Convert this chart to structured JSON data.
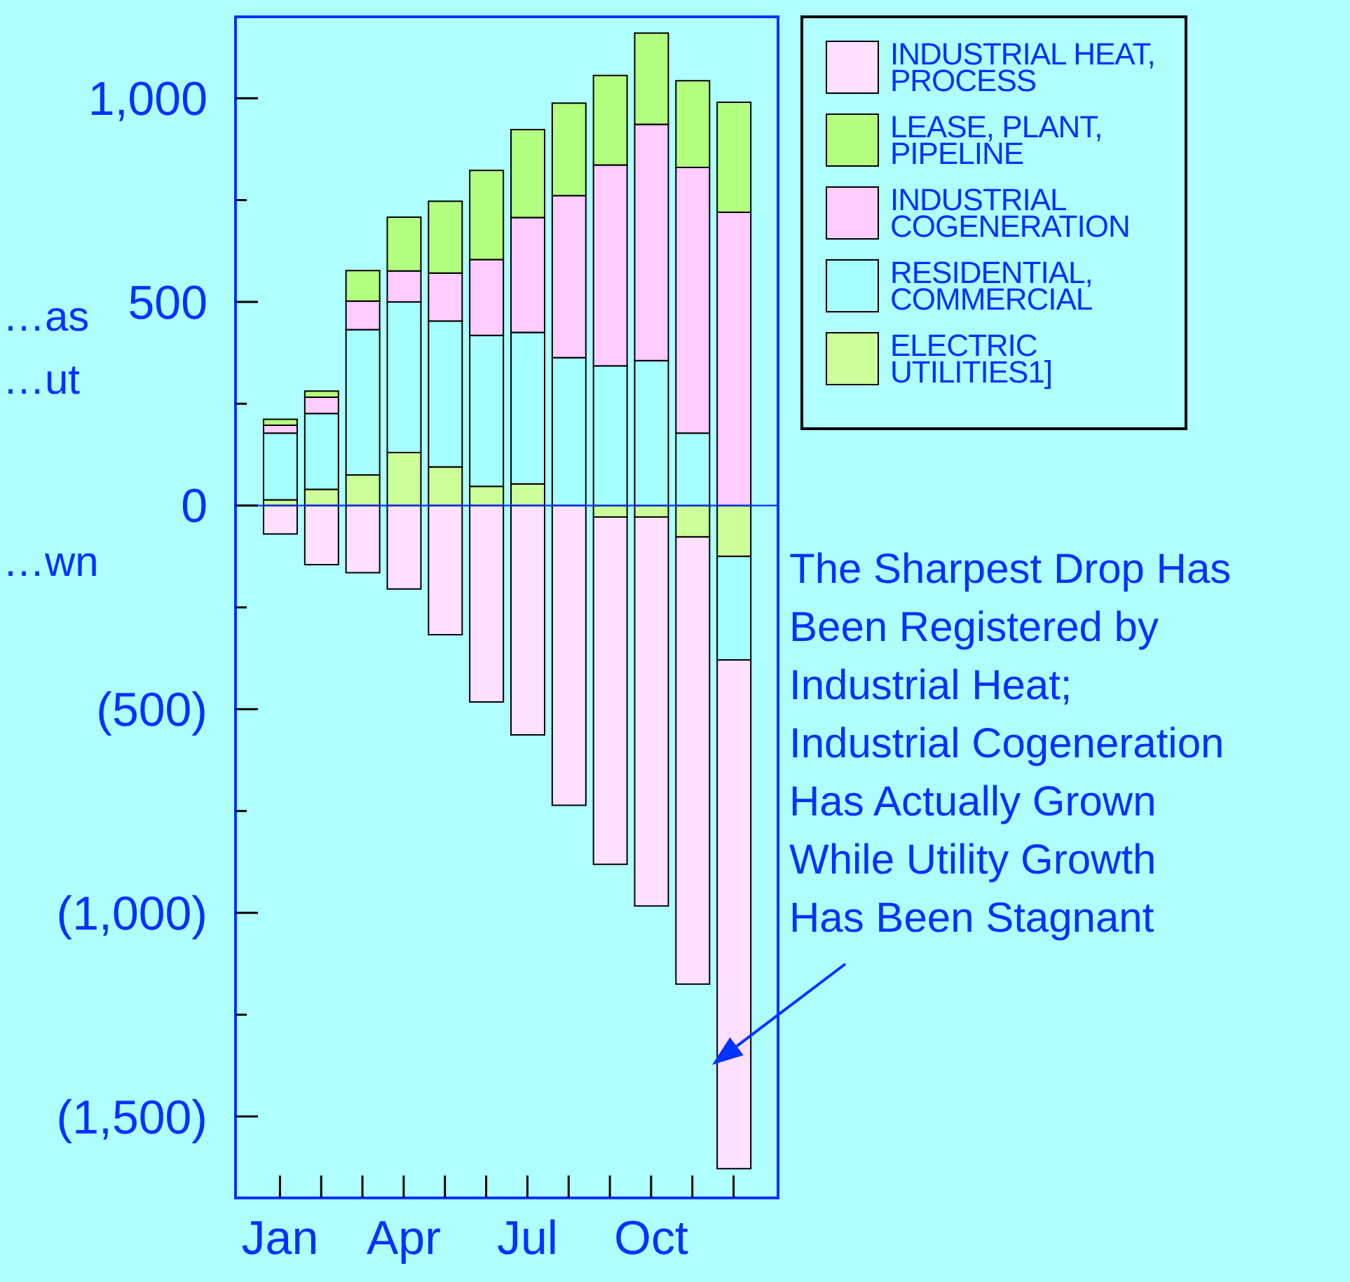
{
  "chart_data": {
    "type": "bar",
    "stacked": true,
    "legend": "top right",
    "categories": [
      "Jan",
      null,
      null,
      "Apr",
      null,
      null,
      "Jul",
      null,
      null,
      "Oct",
      null,
      null
    ],
    "series": [
      {
        "name": "ELECTRIC UTILITIES1]",
        "color": "#ccff99",
        "values": [
          14,
          40,
          75,
          130,
          95,
          47,
          53,
          null,
          -28,
          -28,
          -77,
          -125
        ]
      },
      {
        "name": "RESIDENTIAL, COMMERCIAL",
        "color": "#a6ffff",
        "values": [
          164,
          186,
          357,
          370,
          358,
          371,
          372,
          363,
          343,
          356,
          178,
          -254
        ]
      },
      {
        "name": "INDUSTRIAL COGENERATION",
        "color": "#ffccff",
        "values": [
          19,
          40,
          70,
          76,
          118,
          186,
          282,
          398,
          493,
          580,
          652,
          720
        ]
      },
      {
        "name": "LEASE, PLANT, PIPELINE",
        "color": "#b3ff80",
        "values": [
          15,
          15,
          75,
          132,
          176,
          219,
          216,
          227,
          220,
          224,
          213,
          270
        ]
      },
      {
        "name": "INDUSTRIAL HEAT, PROCESS",
        "color": "#ffe0ff",
        "values": [
          -70,
          -145,
          -165,
          -205,
          -317,
          -482,
          -563,
          -736,
          -853,
          -955,
          -1098,
          -1249
        ]
      }
    ],
    "ylim": [
      -1700,
      1200
    ],
    "yticks": [
      {
        "value": -1500,
        "label": "(1,500)"
      },
      {
        "value": -1250,
        "label": null
      },
      {
        "value": -1000,
        "label": "(1,000)"
      },
      {
        "value": -750,
        "label": null
      },
      {
        "value": -500,
        "label": "(500)"
      },
      {
        "value": -250,
        "label": null
      },
      0,
      {
        "value": 250,
        "label": null
      },
      500,
      {
        "value": 750,
        "label": null
      },
      {
        "value": 1000,
        "label": "1,000"
      }
    ],
    "ref_lines": [
      {
        "axis": "y",
        "value": 0,
        "color": "#0033ff"
      }
    ],
    "annotations": [
      "The Sharpest Drop Has\nBeen Registered by\nIndustrial Heat;\nIndustrial Cogeneration\nHas Actually Grown\nWhile Utility Growth\nHas Been Stagnant",
      "…as",
      "…ut",
      "…wn"
    ]
  }
}
